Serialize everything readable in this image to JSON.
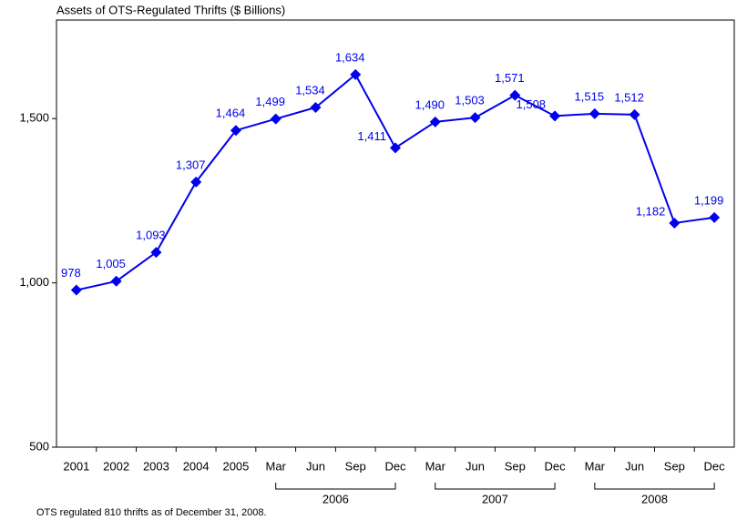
{
  "chart_data": {
    "type": "line",
    "title": "Assets of OTS-Regulated Thrifts ($ Billions)",
    "categories": [
      "2001",
      "2002",
      "2003",
      "2004",
      "2005",
      "Mar",
      "Jun",
      "Sep",
      "Dec",
      "Mar",
      "Jun",
      "Sep",
      "Dec",
      "Mar",
      "Jun",
      "Sep",
      "Dec"
    ],
    "category_groups": [
      {
        "name": "2006",
        "start": 5,
        "end": 8
      },
      {
        "name": "2007",
        "start": 9,
        "end": 12
      },
      {
        "name": "2008",
        "start": 13,
        "end": 16
      }
    ],
    "values": [
      978,
      1005,
      1093,
      1307,
      1464,
      1499,
      1534,
      1634,
      1411,
      1490,
      1503,
      1571,
      1508,
      1515,
      1512,
      1182,
      1199
    ],
    "value_labels": [
      "978",
      "1,005",
      "1,093",
      "1,307",
      "1,464",
      "1,499",
      "1,534",
      "1,634",
      "1,411",
      "1,490",
      "1,503",
      "1,571",
      "1,508",
      "1,515",
      "1,512",
      "1,182",
      "1,199"
    ],
    "color": "#0000ee",
    "ylim": [
      500,
      1800
    ],
    "yticks": [
      500,
      {
        "value": 1000,
        "label": "1,000"
      },
      {
        "value": 1500,
        "label": "1,500"
      }
    ],
    "grid": false,
    "footnote": "OTS regulated 810 thrifts as of December 31, 2008."
  }
}
